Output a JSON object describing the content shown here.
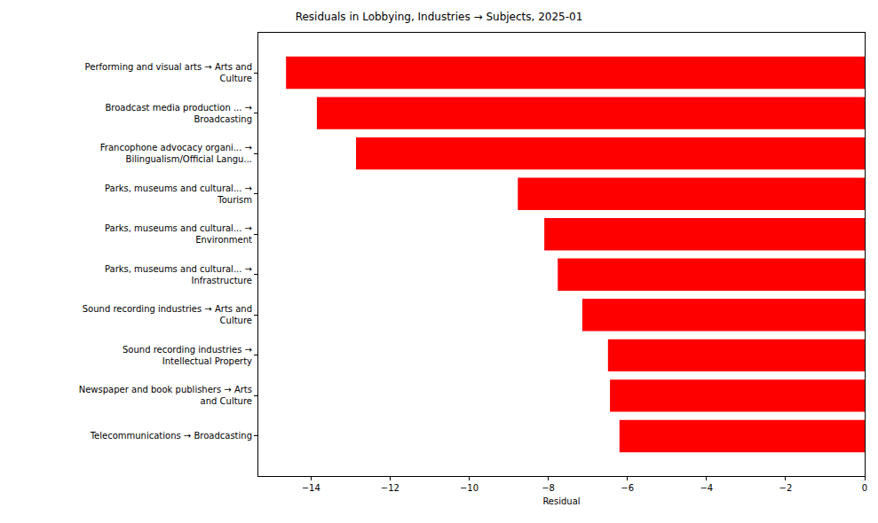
{
  "chart_data": {
    "type": "bar",
    "orientation": "horizontal",
    "title": "Residuals in Lobbying, Industries → Subjects, 2025-01",
    "x_label": "Residual",
    "categories": [
      "Performing and visual arts → Arts and\nCulture",
      "Broadcast media production ... →\nBroadcasting",
      "Francophone advocacy organi... →\nBilingualism/Official Langu...",
      "Parks, museums and cultural... →\nTourism",
      "Parks, museums and cultural... →\nEnvironment",
      "Parks, museums and cultural... →\nInfrastructure",
      "Sound recording industries → Arts and\nCulture",
      "Sound recording industries →\nIntellectual Property",
      "Newspaper and book publishers → Arts\nand Culture",
      "Telecommunications → Broadcasting"
    ],
    "values": [
      -14.63,
      -13.85,
      -12.86,
      -8.77,
      -8.1,
      -7.76,
      -7.14,
      -6.49,
      -6.44,
      -6.2
    ],
    "color": "#ff0000",
    "xlim": [
      -15.33,
      0
    ],
    "xticks": [
      {
        "value": -14,
        "label": "−14"
      },
      {
        "value": -12,
        "label": "−12"
      },
      {
        "value": -10,
        "label": "−10"
      },
      {
        "value": -8,
        "label": "−8"
      },
      {
        "value": -6,
        "label": "−6"
      },
      {
        "value": -4,
        "label": "−4"
      },
      {
        "value": -2,
        "label": "−2"
      },
      0
    ],
    "grid": false
  }
}
